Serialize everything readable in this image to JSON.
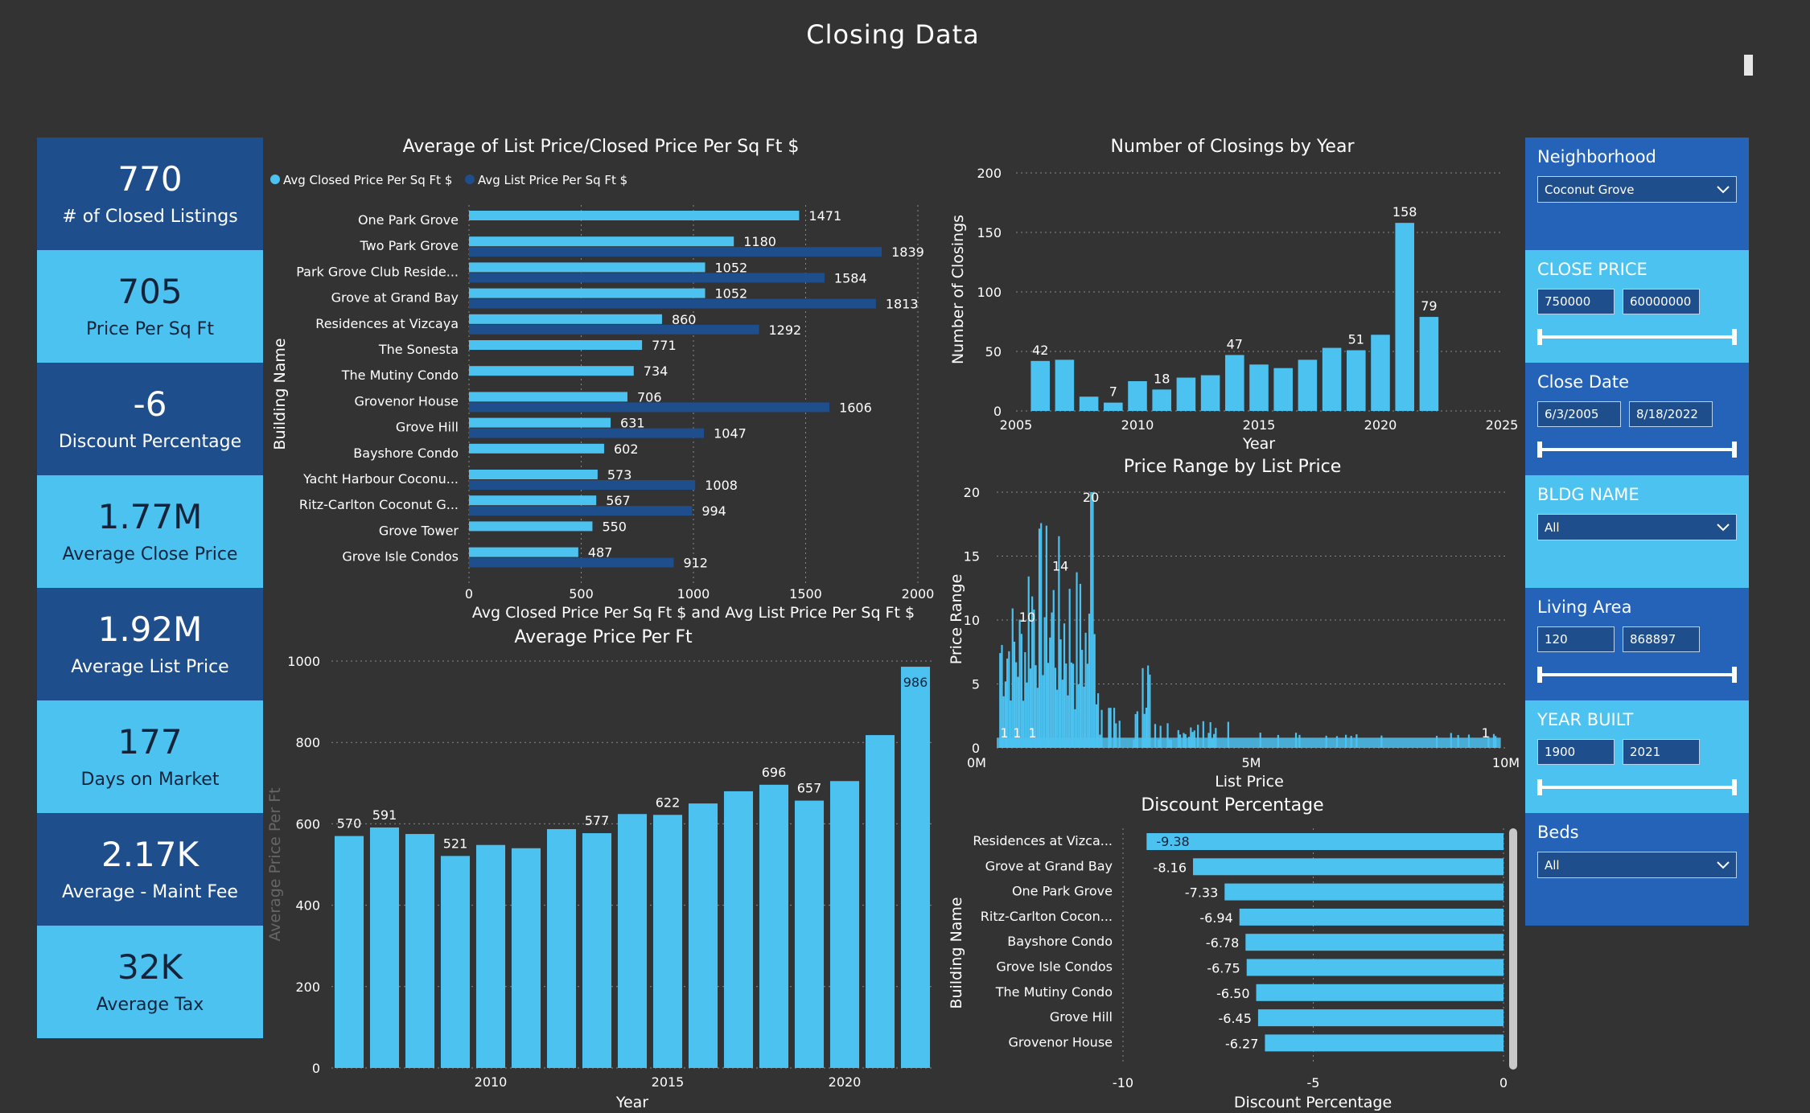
{
  "page": {
    "title": "Closing Data"
  },
  "kpis": [
    {
      "value": "770",
      "label": "# of Closed Listings",
      "style": "dark"
    },
    {
      "value": "705",
      "label": "Price Per Sq Ft",
      "style": "light"
    },
    {
      "value": "-6",
      "label": "Discount Percentage",
      "style": "dark"
    },
    {
      "value": "1.77M",
      "label": "Average Close Price",
      "style": "light"
    },
    {
      "value": "1.92M",
      "label": "Average List Price",
      "style": "dark"
    },
    {
      "value": "177",
      "label": "Days on Market",
      "style": "light"
    },
    {
      "value": "2.17K",
      "label": "Average - Maint Fee",
      "style": "dark"
    },
    {
      "value": "32K",
      "label": "Average Tax",
      "style": "light"
    }
  ],
  "slicers": {
    "neighborhood": {
      "title": "Neighborhood",
      "value": "Coconut Grove"
    },
    "close_price": {
      "title": "CLOSE PRICE",
      "min": "750000",
      "max": "60000000"
    },
    "close_date": {
      "title": "Close Date",
      "min": "6/3/2005",
      "max": "8/18/2022"
    },
    "bldg_name": {
      "title": "BLDG NAME",
      "value": "All"
    },
    "living_area": {
      "title": "Living Area",
      "min": "120",
      "max": "868897"
    },
    "year_built": {
      "title": "YEAR BUILT",
      "min": "1900",
      "max": "2021"
    },
    "beds": {
      "title": "Beds",
      "value": "All"
    }
  },
  "colors": {
    "light": "#4cc2f1",
    "dark": "#1f4e8c",
    "bg": "#333333"
  },
  "chart_data": [
    {
      "id": "avg_list_closed",
      "type": "bar",
      "orientation": "horizontal",
      "title": "Average of List Price/Closed Price Per Sq Ft $",
      "xlabel": "Avg Closed Price Per Sq Ft $ and Avg List Price Per Sq Ft $",
      "ylabel": "Building Name",
      "xlim": [
        0,
        2000
      ],
      "xticks": [
        0,
        500,
        1000,
        1500,
        2000
      ],
      "legend": [
        "Avg Closed Price Per Sq Ft $",
        "Avg List Price Per Sq Ft $"
      ],
      "categories": [
        "One Park Grove",
        "Two Park Grove",
        "Park Grove Club Reside...",
        "Grove at Grand Bay",
        "Residences at Vizcaya",
        "The Sonesta",
        "The Mutiny Condo",
        "Grovenor House",
        "Grove Hill",
        "Bayshore Condo",
        "Yacht Harbour Coconu...",
        "Ritz-Carlton Coconut G...",
        "Grove Tower",
        "Grove Isle Condos"
      ],
      "series": [
        {
          "name": "Avg Closed Price Per Sq Ft $",
          "values": [
            1471,
            1180,
            1052,
            1052,
            860,
            771,
            734,
            706,
            631,
            602,
            573,
            567,
            550,
            487
          ]
        },
        {
          "name": "Avg List Price Per Sq Ft $",
          "values": [
            null,
            1839,
            1584,
            1813,
            1292,
            null,
            null,
            1606,
            1047,
            null,
            1008,
            994,
            null,
            912
          ]
        }
      ]
    },
    {
      "id": "closings_by_year",
      "type": "bar",
      "title": "Number of Closings by Year",
      "xlabel": "Year",
      "ylabel": "Number of Closings",
      "xlim": [
        2005,
        2025
      ],
      "ylim": [
        0,
        200
      ],
      "xticks": [
        2005,
        2010,
        2015,
        2020,
        2025
      ],
      "yticks": [
        0,
        50,
        100,
        150,
        200
      ],
      "x": [
        2006,
        2007,
        2008,
        2009,
        2010,
        2011,
        2012,
        2013,
        2014,
        2015,
        2016,
        2017,
        2018,
        2019,
        2020,
        2021,
        2022
      ],
      "values": [
        42,
        43,
        12,
        7,
        25,
        18,
        28,
        30,
        47,
        39,
        36,
        43,
        53,
        51,
        64,
        158,
        79
      ],
      "labels": {
        "2006": "42",
        "2009": "7",
        "2011": "18",
        "2014": "47",
        "2019": "51",
        "2021": "158",
        "2022": "79"
      }
    },
    {
      "id": "avg_price_per_ft",
      "type": "bar",
      "title": "Average Price Per Ft",
      "xlabel": "Year",
      "ylabel": "Average Price Per Ft",
      "ylim": [
        0,
        1000
      ],
      "yticks": [
        0,
        200,
        400,
        600,
        800,
        1000
      ],
      "xticks": [
        2010,
        2015,
        2020
      ],
      "x": [
        2006,
        2007,
        2008,
        2009,
        2010,
        2011,
        2012,
        2013,
        2014,
        2015,
        2016,
        2017,
        2018,
        2019,
        2020,
        2021,
        2022
      ],
      "values": [
        570,
        591,
        575,
        521,
        548,
        540,
        587,
        577,
        624,
        622,
        650,
        680,
        696,
        657,
        705,
        818,
        986
      ],
      "labels": {
        "2006": "570",
        "2007": "591",
        "2009": "521",
        "2013": "577",
        "2015": "622",
        "2018": "696",
        "2019": "657",
        "2022": "986"
      }
    },
    {
      "id": "price_range",
      "type": "bar",
      "title": "Price Range by List Price",
      "xlabel": "List Price",
      "ylabel": "Price Range",
      "ylim": [
        0,
        20
      ],
      "yticks": [
        0,
        5,
        10,
        15,
        20
      ],
      "xlim": [
        0,
        10
      ],
      "xticks": [
        {
          "v": 0,
          "t": "0M"
        },
        {
          "v": 5,
          "t": "5M"
        },
        {
          "v": 10,
          "t": "10M"
        }
      ],
      "annotations": [
        {
          "x": 0.15,
          "t": "1"
        },
        {
          "x": 0.4,
          "t": "1"
        },
        {
          "x": 0.7,
          "t": "1"
        },
        {
          "x": 0.6,
          "t": "10"
        },
        {
          "x": 1.25,
          "t": "14"
        },
        {
          "x": 1.85,
          "t": "20"
        },
        {
          "x": 9.6,
          "t": "1"
        }
      ]
    },
    {
      "id": "discount_pct",
      "type": "bar",
      "orientation": "horizontal",
      "title": "Discount Percentage",
      "xlabel": "Discount Percentage",
      "ylabel": "Building Name",
      "xlim": [
        -10,
        0
      ],
      "xticks": [
        -10,
        -5,
        0
      ],
      "categories": [
        "Residences at Vizca...",
        "Grove at Grand Bay",
        "One Park Grove",
        "Ritz-Carlton Cocon...",
        "Bayshore Condo",
        "Grove Isle Condos",
        "The Mutiny Condo",
        "Grove Hill",
        "Grovenor House"
      ],
      "values": [
        -9.38,
        -8.16,
        -7.33,
        -6.94,
        -6.78,
        -6.75,
        -6.5,
        -6.45,
        -6.27
      ],
      "labels": [
        "-9.38",
        "-8.16",
        "-7.33",
        "-6.94",
        "-6.78",
        "-6.75",
        "-6.50",
        "-6.45",
        "-6.27"
      ]
    }
  ]
}
